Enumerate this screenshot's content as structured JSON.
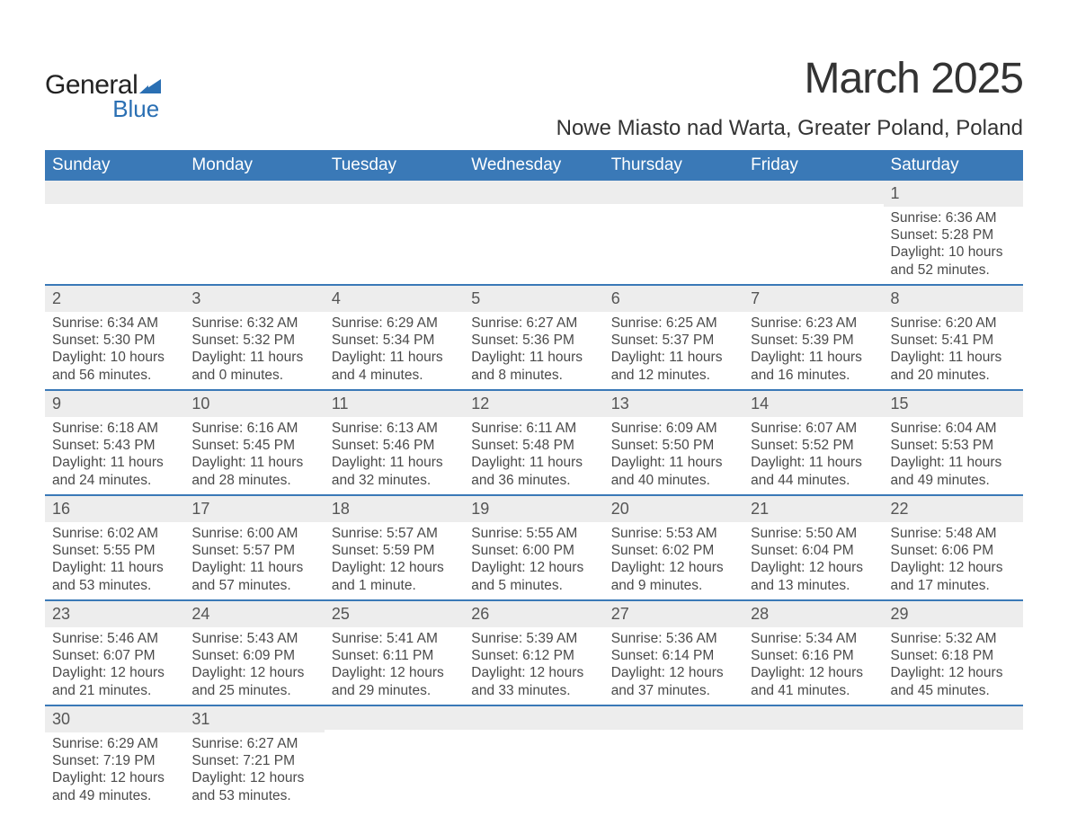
{
  "logo": {
    "text_general": "General",
    "text_blue": "Blue",
    "icon_color": "#2a6fb3"
  },
  "header": {
    "month_title": "March 2025",
    "location": "Nowe Miasto nad Warta, Greater Poland, Poland"
  },
  "style": {
    "header_bg": "#3a79b7",
    "header_text": "#ffffff",
    "daynum_bg": "#ededed",
    "week_divider": "#3a79b7",
    "body_text": "#4a4a4a",
    "title_fontsize_pt": 48,
    "location_fontsize_pt": 24,
    "th_fontsize_pt": 19,
    "cell_fontsize_pt": 15.5
  },
  "weekdays": [
    "Sunday",
    "Monday",
    "Tuesday",
    "Wednesday",
    "Thursday",
    "Friday",
    "Saturday"
  ],
  "weeks": [
    [
      null,
      null,
      null,
      null,
      null,
      null,
      {
        "day": "1",
        "sunrise": "Sunrise: 6:36 AM",
        "sunset": "Sunset: 5:28 PM",
        "dl1": "Daylight: 10 hours",
        "dl2": "and 52 minutes."
      }
    ],
    [
      {
        "day": "2",
        "sunrise": "Sunrise: 6:34 AM",
        "sunset": "Sunset: 5:30 PM",
        "dl1": "Daylight: 10 hours",
        "dl2": "and 56 minutes."
      },
      {
        "day": "3",
        "sunrise": "Sunrise: 6:32 AM",
        "sunset": "Sunset: 5:32 PM",
        "dl1": "Daylight: 11 hours",
        "dl2": "and 0 minutes."
      },
      {
        "day": "4",
        "sunrise": "Sunrise: 6:29 AM",
        "sunset": "Sunset: 5:34 PM",
        "dl1": "Daylight: 11 hours",
        "dl2": "and 4 minutes."
      },
      {
        "day": "5",
        "sunrise": "Sunrise: 6:27 AM",
        "sunset": "Sunset: 5:36 PM",
        "dl1": "Daylight: 11 hours",
        "dl2": "and 8 minutes."
      },
      {
        "day": "6",
        "sunrise": "Sunrise: 6:25 AM",
        "sunset": "Sunset: 5:37 PM",
        "dl1": "Daylight: 11 hours",
        "dl2": "and 12 minutes."
      },
      {
        "day": "7",
        "sunrise": "Sunrise: 6:23 AM",
        "sunset": "Sunset: 5:39 PM",
        "dl1": "Daylight: 11 hours",
        "dl2": "and 16 minutes."
      },
      {
        "day": "8",
        "sunrise": "Sunrise: 6:20 AM",
        "sunset": "Sunset: 5:41 PM",
        "dl1": "Daylight: 11 hours",
        "dl2": "and 20 minutes."
      }
    ],
    [
      {
        "day": "9",
        "sunrise": "Sunrise: 6:18 AM",
        "sunset": "Sunset: 5:43 PM",
        "dl1": "Daylight: 11 hours",
        "dl2": "and 24 minutes."
      },
      {
        "day": "10",
        "sunrise": "Sunrise: 6:16 AM",
        "sunset": "Sunset: 5:45 PM",
        "dl1": "Daylight: 11 hours",
        "dl2": "and 28 minutes."
      },
      {
        "day": "11",
        "sunrise": "Sunrise: 6:13 AM",
        "sunset": "Sunset: 5:46 PM",
        "dl1": "Daylight: 11 hours",
        "dl2": "and 32 minutes."
      },
      {
        "day": "12",
        "sunrise": "Sunrise: 6:11 AM",
        "sunset": "Sunset: 5:48 PM",
        "dl1": "Daylight: 11 hours",
        "dl2": "and 36 minutes."
      },
      {
        "day": "13",
        "sunrise": "Sunrise: 6:09 AM",
        "sunset": "Sunset: 5:50 PM",
        "dl1": "Daylight: 11 hours",
        "dl2": "and 40 minutes."
      },
      {
        "day": "14",
        "sunrise": "Sunrise: 6:07 AM",
        "sunset": "Sunset: 5:52 PM",
        "dl1": "Daylight: 11 hours",
        "dl2": "and 44 minutes."
      },
      {
        "day": "15",
        "sunrise": "Sunrise: 6:04 AM",
        "sunset": "Sunset: 5:53 PM",
        "dl1": "Daylight: 11 hours",
        "dl2": "and 49 minutes."
      }
    ],
    [
      {
        "day": "16",
        "sunrise": "Sunrise: 6:02 AM",
        "sunset": "Sunset: 5:55 PM",
        "dl1": "Daylight: 11 hours",
        "dl2": "and 53 minutes."
      },
      {
        "day": "17",
        "sunrise": "Sunrise: 6:00 AM",
        "sunset": "Sunset: 5:57 PM",
        "dl1": "Daylight: 11 hours",
        "dl2": "and 57 minutes."
      },
      {
        "day": "18",
        "sunrise": "Sunrise: 5:57 AM",
        "sunset": "Sunset: 5:59 PM",
        "dl1": "Daylight: 12 hours",
        "dl2": "and 1 minute."
      },
      {
        "day": "19",
        "sunrise": "Sunrise: 5:55 AM",
        "sunset": "Sunset: 6:00 PM",
        "dl1": "Daylight: 12 hours",
        "dl2": "and 5 minutes."
      },
      {
        "day": "20",
        "sunrise": "Sunrise: 5:53 AM",
        "sunset": "Sunset: 6:02 PM",
        "dl1": "Daylight: 12 hours",
        "dl2": "and 9 minutes."
      },
      {
        "day": "21",
        "sunrise": "Sunrise: 5:50 AM",
        "sunset": "Sunset: 6:04 PM",
        "dl1": "Daylight: 12 hours",
        "dl2": "and 13 minutes."
      },
      {
        "day": "22",
        "sunrise": "Sunrise: 5:48 AM",
        "sunset": "Sunset: 6:06 PM",
        "dl1": "Daylight: 12 hours",
        "dl2": "and 17 minutes."
      }
    ],
    [
      {
        "day": "23",
        "sunrise": "Sunrise: 5:46 AM",
        "sunset": "Sunset: 6:07 PM",
        "dl1": "Daylight: 12 hours",
        "dl2": "and 21 minutes."
      },
      {
        "day": "24",
        "sunrise": "Sunrise: 5:43 AM",
        "sunset": "Sunset: 6:09 PM",
        "dl1": "Daylight: 12 hours",
        "dl2": "and 25 minutes."
      },
      {
        "day": "25",
        "sunrise": "Sunrise: 5:41 AM",
        "sunset": "Sunset: 6:11 PM",
        "dl1": "Daylight: 12 hours",
        "dl2": "and 29 minutes."
      },
      {
        "day": "26",
        "sunrise": "Sunrise: 5:39 AM",
        "sunset": "Sunset: 6:12 PM",
        "dl1": "Daylight: 12 hours",
        "dl2": "and 33 minutes."
      },
      {
        "day": "27",
        "sunrise": "Sunrise: 5:36 AM",
        "sunset": "Sunset: 6:14 PM",
        "dl1": "Daylight: 12 hours",
        "dl2": "and 37 minutes."
      },
      {
        "day": "28",
        "sunrise": "Sunrise: 5:34 AM",
        "sunset": "Sunset: 6:16 PM",
        "dl1": "Daylight: 12 hours",
        "dl2": "and 41 minutes."
      },
      {
        "day": "29",
        "sunrise": "Sunrise: 5:32 AM",
        "sunset": "Sunset: 6:18 PM",
        "dl1": "Daylight: 12 hours",
        "dl2": "and 45 minutes."
      }
    ],
    [
      {
        "day": "30",
        "sunrise": "Sunrise: 6:29 AM",
        "sunset": "Sunset: 7:19 PM",
        "dl1": "Daylight: 12 hours",
        "dl2": "and 49 minutes."
      },
      {
        "day": "31",
        "sunrise": "Sunrise: 6:27 AM",
        "sunset": "Sunset: 7:21 PM",
        "dl1": "Daylight: 12 hours",
        "dl2": "and 53 minutes."
      },
      null,
      null,
      null,
      null,
      null
    ]
  ]
}
